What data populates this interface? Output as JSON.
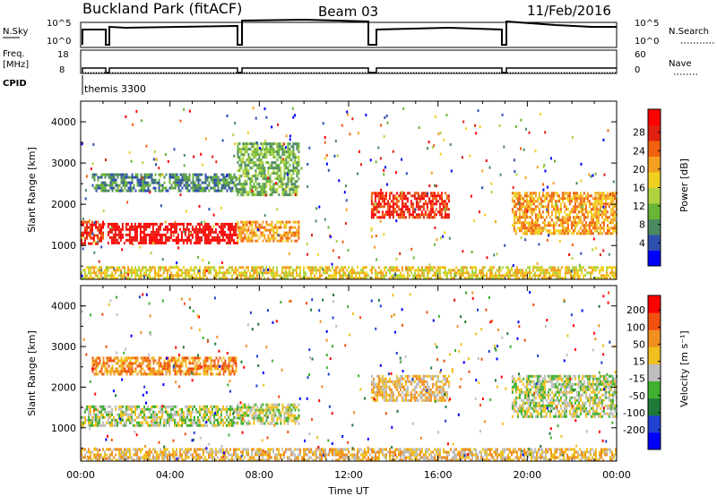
{
  "header": {
    "station": "Buckland Park (fitACF)",
    "beam": "Beam 03",
    "date": "11/Feb/2016"
  },
  "strip_labels": {
    "nsky": "N.Sky",
    "nsky_ticks": [
      "10^5",
      "10^0"
    ],
    "nsearch": "N.Search",
    "nsearch_ticks": [
      "10^5",
      "10^0"
    ],
    "freq": "Freq.",
    "freq_unit": "[MHz]",
    "freq_ticks": [
      "18",
      "8"
    ],
    "nave": "Nave",
    "nave_ticks": [
      "60",
      "0"
    ],
    "cpid": "CPID",
    "cpid_value": "themis 3300"
  },
  "chart_data": [
    {
      "type": "heatmap",
      "name": "power",
      "xlabel": "Time UT",
      "ylabel": "Slant Range [km]",
      "x_ticks": [
        "00:00",
        "04:00",
        "08:00",
        "12:00",
        "16:00",
        "20:00",
        "00:00"
      ],
      "xlim": [
        0,
        24
      ],
      "y_ticks": [
        "1000",
        "2000",
        "3000",
        "4000"
      ],
      "ylim": [
        180,
        4500
      ],
      "colorbar": {
        "label": "Power [dB]",
        "ticks": [
          "4",
          "8",
          "12",
          "16",
          "20",
          "24",
          "28"
        ],
        "colors": [
          "#0000ff",
          "#2f4fb0",
          "#4c8a62",
          "#6ab437",
          "#b0d440",
          "#f0d020",
          "#f5a020",
          "#f06010",
          "#e02010",
          "#ff0000"
        ]
      },
      "bands": [
        {
          "t0": 0.0,
          "t1": 1.0,
          "r0": 1050,
          "r1": 1600,
          "level": 8
        },
        {
          "t0": 1.2,
          "t1": 7.0,
          "r0": 1050,
          "r1": 1550,
          "level": 9
        },
        {
          "t0": 0.5,
          "t1": 7.0,
          "r0": 2350,
          "r1": 2750,
          "level": 2
        },
        {
          "t0": 7.0,
          "t1": 9.8,
          "r0": 1100,
          "r1": 1600,
          "level": 6
        },
        {
          "t0": 7.0,
          "t1": 9.8,
          "r0": 2200,
          "r1": 3500,
          "level": 3
        },
        {
          "t0": 13.0,
          "t1": 16.5,
          "r0": 1700,
          "r1": 2300,
          "level": 8
        },
        {
          "t0": 19.3,
          "t1": 24.0,
          "r0": 1300,
          "r1": 2300,
          "level": 6
        },
        {
          "t0": 0.0,
          "t1": 24.0,
          "r0": 200,
          "r1": 500,
          "level": 5
        }
      ]
    },
    {
      "type": "heatmap",
      "name": "velocity",
      "xlabel": "Time UT",
      "ylabel": "Slant Range [km]",
      "x_ticks": [
        "00:00",
        "04:00",
        "08:00",
        "12:00",
        "16:00",
        "20:00",
        "00:00"
      ],
      "xlim": [
        0,
        24
      ],
      "y_ticks": [
        "1000",
        "2000",
        "3000",
        "4000"
      ],
      "ylim": [
        180,
        4500
      ],
      "colorbar": {
        "label": "Velocity [m s⁻¹]",
        "ticks": [
          "200",
          "100",
          "50",
          "15",
          "-15",
          "-50",
          "-100",
          "-200"
        ],
        "colors": [
          "#0000ff",
          "#2040d0",
          "#1f7a3a",
          "#3fb030",
          "#bebebe",
          "#f0c020",
          "#f09020",
          "#f05010",
          "#ff0000"
        ]
      },
      "bands": [
        {
          "t0": 0.0,
          "t1": 7.0,
          "r0": 1050,
          "r1": 1550,
          "level": 4
        },
        {
          "t0": 0.5,
          "t1": 7.0,
          "r0": 2350,
          "r1": 2750,
          "level": 6
        },
        {
          "t0": 7.0,
          "t1": 9.8,
          "r0": 1100,
          "r1": 1600,
          "level": 4
        },
        {
          "t0": 13.0,
          "t1": 16.5,
          "r0": 1700,
          "r1": 2300,
          "level": 5
        },
        {
          "t0": 19.3,
          "t1": 24.0,
          "r0": 1300,
          "r1": 2300,
          "level": 4
        },
        {
          "t0": 0.0,
          "t1": 24.0,
          "r0": 200,
          "r1": 500,
          "level": 5
        }
      ]
    }
  ]
}
